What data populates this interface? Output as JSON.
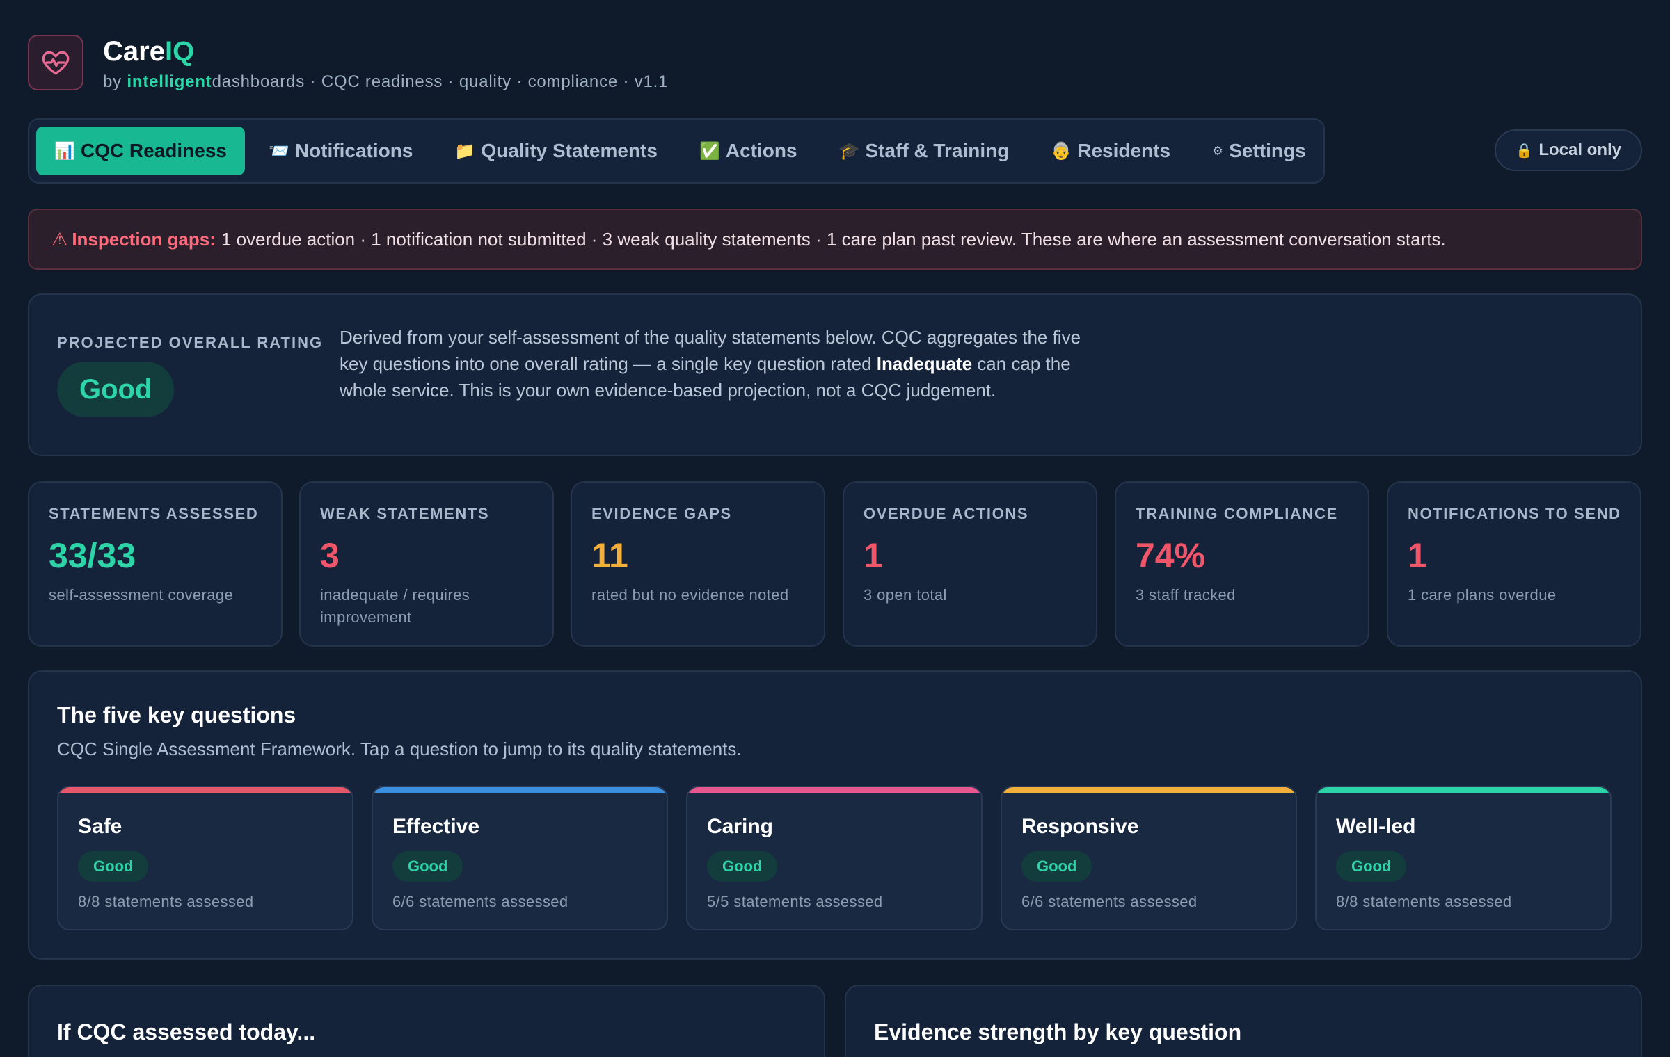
{
  "app": {
    "name_main": "Care",
    "name_accent": "IQ",
    "sub_prefix": "by ",
    "sub_brand": "intelligent",
    "sub_rest": "dashboards · CQC readiness · quality · compliance · v1.1"
  },
  "nav": {
    "tabs": [
      {
        "emoji": "📊",
        "label": "CQC Readiness",
        "active": true
      },
      {
        "emoji": "📨",
        "label": "Notifications",
        "active": false
      },
      {
        "emoji": "📁",
        "label": "Quality Statements",
        "active": false
      },
      {
        "emoji": "✅",
        "label": "Actions",
        "active": false
      },
      {
        "emoji": "🎓",
        "label": "Staff & Training",
        "active": false
      },
      {
        "emoji": "👵",
        "label": "Residents",
        "active": false
      },
      {
        "emoji": "⚙",
        "label": "Settings",
        "active": false
      }
    ],
    "local_icon": "🔒",
    "local_label": "Local only"
  },
  "alert": {
    "icon": "⚠",
    "label": "Inspection gaps:",
    "text": "1 overdue action · 1 notification not submitted · 3 weak quality statements · 1 care plan past review. These are where an assessment conversation starts."
  },
  "rating": {
    "label": "PROJECTED OVERALL RATING",
    "value": "Good",
    "text_before": "Derived from your self-assessment of the quality statements below. CQC aggregates the five key questions into one overall rating — a single key question rated ",
    "text_bold": "Inadequate",
    "text_after": " can cap the whole service. This is your own evidence-based projection, not a CQC judgement."
  },
  "stats": [
    {
      "label": "STATEMENTS ASSESSED",
      "value": "33/33",
      "note": "self-assessment coverage",
      "color": "#2dd4a8"
    },
    {
      "label": "WEAK STATEMENTS",
      "value": "3",
      "note": "inadequate / requires improvement",
      "color": "#f0566a"
    },
    {
      "label": "EVIDENCE GAPS",
      "value": "11",
      "note": "rated but no evidence noted",
      "color": "#f4ae3a"
    },
    {
      "label": "OVERDUE ACTIONS",
      "value": "1",
      "note": "3 open total",
      "color": "#f0566a"
    },
    {
      "label": "TRAINING COMPLIANCE",
      "value": "74%",
      "note": "3 staff tracked",
      "color": "#f0566a"
    },
    {
      "label": "NOTIFICATIONS TO SEND",
      "value": "1",
      "note": "1 care plans overdue",
      "color": "#f0566a"
    }
  ],
  "key_questions": {
    "title": "The five key questions",
    "subtitle": "CQC Single Assessment Framework. Tap a question to jump to its quality statements.",
    "items": [
      {
        "name": "Safe",
        "rating": "Good",
        "note": "8/8 statements assessed",
        "color": "#e5576a"
      },
      {
        "name": "Effective",
        "rating": "Good",
        "note": "6/6 statements assessed",
        "color": "#3b8fe0"
      },
      {
        "name": "Caring",
        "rating": "Good",
        "note": "5/5 statements assessed",
        "color": "#e6588e"
      },
      {
        "name": "Responsive",
        "rating": "Good",
        "note": "6/6 statements assessed",
        "color": "#f4ae3a"
      },
      {
        "name": "Well-led",
        "rating": "Good",
        "note": "8/8 statements assessed",
        "color": "#2dd4a8"
      }
    ]
  },
  "bottom": {
    "left_title": "If CQC assessed today...",
    "right_title": "Evidence strength by key question"
  }
}
